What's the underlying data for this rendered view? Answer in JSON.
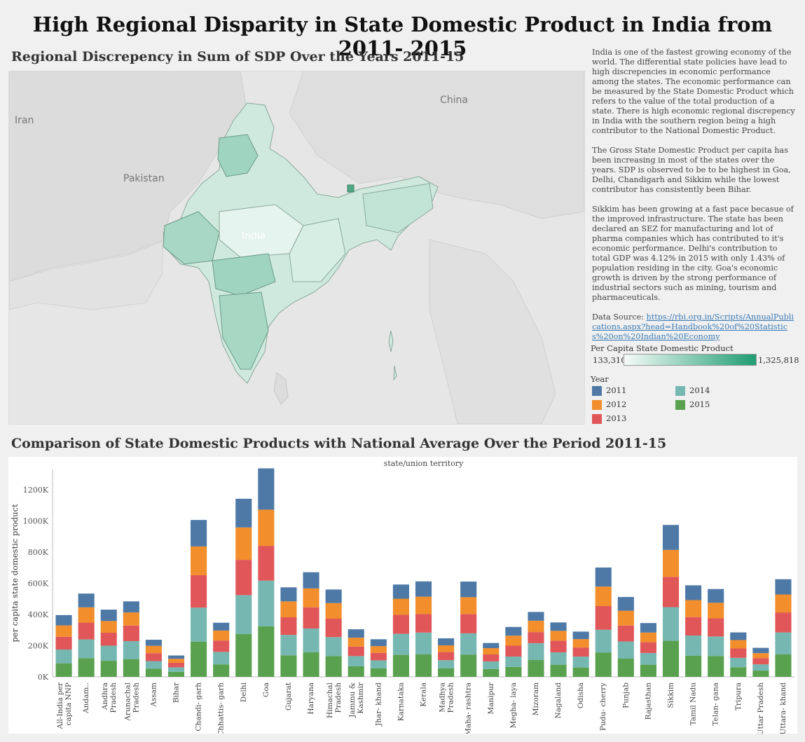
{
  "title": "High Regional Disparity in State Domestic Product in India from 2011- 2015",
  "map_section": {
    "title": "Regional Discrepency in Sum of SDP Over the Years 2011-15",
    "labels": {
      "iran": "Iran",
      "pakistan": "Pakistan",
      "china": "China",
      "india": "India"
    }
  },
  "description": {
    "p1": "India is one of the fastest growing economy of the world. The differential state policies have lead to high discrepencies in economic performance among the states. The economic performance can be measured by the State Domestic Product which refers to the value of the total production of a state. There is high economic regional discrepency in India with the southern region being a high contributor to the National Domestic Product.",
    "p2": "The Gross State Domestic Product per capita has been increasing in most of the states over the years. SDP is observed to be to be highest in Goa, Delhi, Chandigarh and Sikkim while the lowest contributor has consistently been Bihar.",
    "p3": "Sikkim has been growing at a fast pace becasue of the improved infrastructure. The state has been declared an SEZ for manufacturing and lot of pharma companies which has contributed to it's economic performance. Delhi's contribution to total GDP was 4.12% in 2015 with only 1.43% of population residing in the city. Goa's economic growth is driven by the strong performance of industrial sectors such as mining, tourism and pharmaceuticals.",
    "source_label": "Data Source: ",
    "source_link": "https://rbi.org.in/Scripts/AnnualPublications.aspx?head=Handbook%20of%20Statistics%20on%20Indian%20Economy"
  },
  "color_legend": {
    "title": "Per Capita State Domestic Product",
    "min": "133,310",
    "max": "1,325,818",
    "min_color": "#f5fbf8",
    "max_color": "#1f9d72"
  },
  "year_legend": {
    "title": "Year",
    "items": [
      {
        "label": "2011",
        "color": "#4e79a7"
      },
      {
        "label": "2012",
        "color": "#f28e2b"
      },
      {
        "label": "2013",
        "color": "#e15759"
      },
      {
        "label": "2014",
        "color": "#76b7b2"
      },
      {
        "label": "2015",
        "color": "#59a14f"
      }
    ]
  },
  "bar_section": {
    "title": "Comparison of State Domestic Products with National Average Over the Period 2011-15"
  },
  "chart_data": {
    "type": "bar",
    "stacked": true,
    "column_header": "state/union territory",
    "ylabel": "per capita state domestic product",
    "ylim": [
      0,
      1330000
    ],
    "yticks": [
      0,
      200000,
      400000,
      600000,
      800000,
      1000000,
      1200000
    ],
    "ytick_labels": [
      "0K",
      "200K",
      "400K",
      "600K",
      "800K",
      "1000K",
      "1200K"
    ],
    "categories": [
      [
        "All-India per",
        "capita NNP"
      ],
      [
        "Andam.."
      ],
      [
        "Andhra",
        "Pradesh"
      ],
      [
        "Arunachal",
        "Pradesh"
      ],
      [
        "Assam"
      ],
      [
        "Bihar"
      ],
      [
        "Chandi- garh"
      ],
      [
        "Chhattis- garh"
      ],
      [
        "Delhi"
      ],
      [
        "Goa"
      ],
      [
        "Gujarat"
      ],
      [
        "Haryana"
      ],
      [
        "Himachal",
        "Pradesh"
      ],
      [
        "Jammu &",
        "Kashmir"
      ],
      [
        "Jhar- khand"
      ],
      [
        "Karnataka"
      ],
      [
        "Kerala"
      ],
      [
        "Madhya",
        "Pradesh"
      ],
      [
        "Maha- rashtra"
      ],
      [
        "Manipur"
      ],
      [
        "Megha- laya"
      ],
      [
        "Mizoram"
      ],
      [
        "Nagaland"
      ],
      [
        "Odisha"
      ],
      [
        "Pudu- cherry"
      ],
      [
        "Punjab"
      ],
      [
        "Rajasthan"
      ],
      [
        "Sikkim"
      ],
      [
        "Tamil Nadu"
      ],
      [
        "Telan- gana"
      ],
      [
        "Tripura"
      ],
      [
        "Uttar Pradesh"
      ],
      [
        "Uttara- khand"
      ]
    ],
    "series": [
      {
        "name": "2015",
        "color": "#59a14f",
        "values": [
          87000,
          120000,
          103000,
          114000,
          52000,
          32000,
          226000,
          80000,
          274000,
          324000,
          138000,
          158000,
          133000,
          68000,
          54000,
          141000,
          144000,
          54000,
          143000,
          50000,
          64000,
          108000,
          78000,
          60000,
          155000,
          117000,
          78000,
          231000,
          135000,
          134000,
          62000,
          40000,
          144000
        ]
      },
      {
        "name": "2014",
        "color": "#76b7b2",
        "values": [
          88000,
          120000,
          97000,
          115000,
          49000,
          29000,
          218000,
          80000,
          250000,
          293000,
          131000,
          152000,
          122000,
          65000,
          52000,
          135000,
          140000,
          53000,
          136000,
          49000,
          66000,
          108000,
          79000,
          70000,
          147000,
          110000,
          75000,
          216000,
          130000,
          125000,
          60000,
          40000,
          141000
        ]
      },
      {
        "name": "2013",
        "color": "#e15759",
        "values": [
          82000,
          108000,
          83000,
          100000,
          51000,
          29000,
          208000,
          73000,
          226000,
          223000,
          113000,
          136000,
          118000,
          61000,
          48000,
          122000,
          118000,
          52000,
          124000,
          45000,
          70000,
          71000,
          75000,
          58000,
          152000,
          102000,
          69000,
          194000,
          118000,
          116000,
          60000,
          40000,
          128000
        ]
      },
      {
        "name": "2012",
        "color": "#f28e2b",
        "values": [
          73000,
          98000,
          75000,
          84000,
          47000,
          26000,
          184000,
          64000,
          208000,
          232000,
          102000,
          121000,
          100000,
          57000,
          43000,
          103000,
          112000,
          43000,
          108000,
          40000,
          64000,
          73000,
          63000,
          54000,
          125000,
          95000,
          62000,
          173000,
          109000,
          100000,
          54000,
          32000,
          115000
        ]
      },
      {
        "name": "2011",
        "color": "#4e79a7",
        "values": [
          66000,
          88000,
          73000,
          71000,
          39000,
          21000,
          170000,
          50000,
          184000,
          265000,
          90000,
          104000,
          87000,
          54000,
          44000,
          91000,
          98000,
          45000,
          100000,
          33000,
          56000,
          56000,
          54000,
          48000,
          122000,
          88000,
          61000,
          160000,
          95000,
          88000,
          49000,
          34000,
          98000
        ]
      }
    ]
  }
}
